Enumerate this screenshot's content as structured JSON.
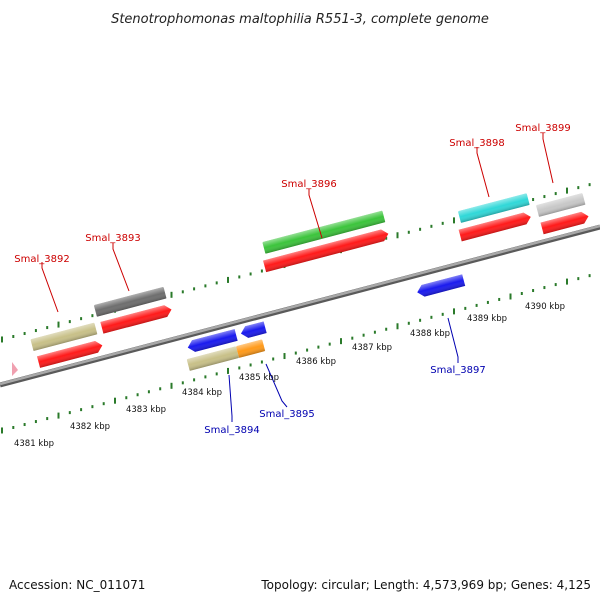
{
  "title": "Stenotrophomonas maltophilia R551-3, complete genome",
  "footer": {
    "accession": "Accession: NC_011071",
    "topology": "Topology: circular; Length: 4,573,969 bp; Genes: 4,125"
  },
  "colors": {
    "backbone": "#8c8c8c",
    "tick_major": "#2a7a2a",
    "tick_minor": "#2a7a2a",
    "label_top": "#cc0000",
    "label_bottom": "#0000b0",
    "marker": "#f0a0b0"
  },
  "tick_labels": [
    "4381 kbp",
    "4382 kbp",
    "4383 kbp",
    "4384 kbp",
    "4385 kbp",
    "4386 kbp",
    "4387 kbp",
    "4388 kbp",
    "4389 kbp",
    "4390 kbp"
  ],
  "genes_top": [
    {
      "label": "Smal_3892",
      "feature_color": "#c8c088",
      "cds_color": "#ff1a1a"
    },
    {
      "label": "Smal_3893",
      "feature_color": "#6e6e6e",
      "cds_color": "#ff1a1a"
    },
    {
      "label": "Smal_3896",
      "feature_color": "#3cc43c",
      "cds_color": "#ff1a1a"
    },
    {
      "label": "Smal_3898",
      "feature_color": "#30d8d8",
      "cds_color": "#ff1a1a"
    },
    {
      "label": "Smal_3899",
      "feature_color": "#c8c8c8",
      "cds_color": "#ff1a1a"
    }
  ],
  "genes_bottom": [
    {
      "label": "Smal_3894",
      "feature_color": "#c8c088",
      "cds_color": "#1a1aee"
    },
    {
      "label": "Smal_3895",
      "feature_color": "#ff9a1a",
      "cds_color": "#1a1aee"
    },
    {
      "label": "Smal_3897",
      "feature_color": "#1a1aee",
      "cds_color": "#1a1aee"
    }
  ]
}
